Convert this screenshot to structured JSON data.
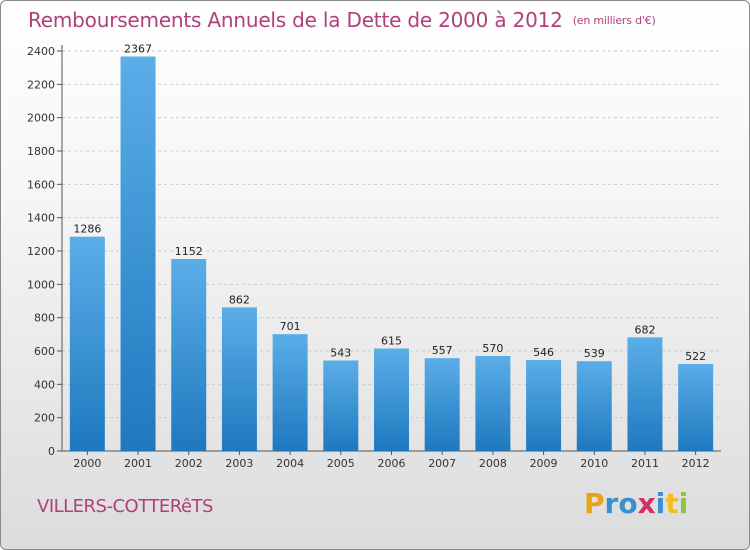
{
  "header": {
    "title": "Remboursements Annuels de la Dette de 2000 à 2012",
    "subtitle": "(en milliers d'€)"
  },
  "footer": {
    "city": "VILLERS-COTTERêTS",
    "brand_letters": [
      "P",
      "r",
      "o",
      "x",
      "i",
      "t",
      "i"
    ],
    "brand_colors": [
      "#e8a317",
      "#3a8fd1",
      "#3a8fd1",
      "#d12f6a",
      "#3a8fd1",
      "#f0c020",
      "#8dc63f"
    ]
  },
  "chart_data": {
    "type": "bar",
    "title": "Remboursements Annuels de la Dette de 2000 à 2012",
    "xlabel": "",
    "ylabel": "",
    "categories": [
      "2000",
      "2001",
      "2002",
      "2003",
      "2004",
      "2005",
      "2006",
      "2007",
      "2008",
      "2009",
      "2010",
      "2011",
      "2012"
    ],
    "values": [
      1286,
      2367,
      1152,
      862,
      701,
      543,
      615,
      557,
      570,
      546,
      539,
      682,
      522
    ],
    "ylim": [
      0,
      2400
    ],
    "yticks": [
      0,
      200,
      400,
      600,
      800,
      1000,
      1200,
      1400,
      1600,
      1800,
      2000,
      2200,
      2400
    ],
    "grid": true,
    "bar_color_light": "#5aaee8",
    "bar_color_dark": "#1f78bf"
  }
}
